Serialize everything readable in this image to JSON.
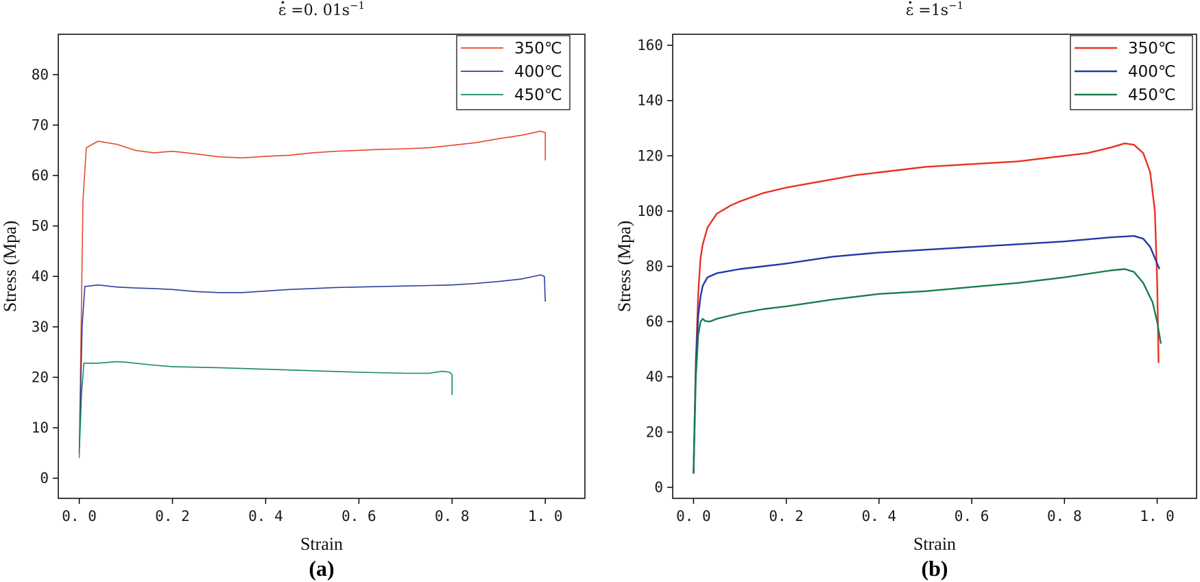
{
  "chart_data": [
    {
      "type": "line",
      "panel_label": "(a)",
      "title": "ε̇ =0. 01s⁻¹",
      "title_rate": "ε =0. 01s",
      "title_exp": "−1",
      "xlabel": "Strain",
      "ylabel": "Stress (Mpa)",
      "xlim": [
        -0.045,
        1.085
      ],
      "ylim": [
        -4,
        88
      ],
      "xticks": [
        0.0,
        0.2,
        0.4,
        0.6,
        0.8,
        1.0
      ],
      "xtick_labels": [
        "0. 0",
        "0. 2",
        "0. 4",
        "0. 6",
        "0. 8",
        "1. 0"
      ],
      "yticks": [
        0,
        10,
        20,
        30,
        40,
        50,
        60,
        70,
        80
      ],
      "ytick_labels": [
        "0",
        "10",
        "20",
        "30",
        "40",
        "50",
        "60",
        "70",
        "80"
      ],
      "legend_position": "top-right",
      "series": [
        {
          "name": "350℃",
          "color": "#e8472a",
          "x": [
            0,
            0.008,
            0.015,
            0.04,
            0.08,
            0.12,
            0.16,
            0.2,
            0.25,
            0.3,
            0.35,
            0.4,
            0.45,
            0.5,
            0.55,
            0.6,
            0.65,
            0.7,
            0.75,
            0.8,
            0.85,
            0.9,
            0.95,
            0.99,
            1.0,
            1.0
          ],
          "y": [
            4,
            55,
            65.5,
            66.8,
            66.2,
            65,
            64.5,
            64.8,
            64.3,
            63.7,
            63.5,
            63.8,
            64,
            64.5,
            64.8,
            65,
            65.2,
            65.3,
            65.5,
            66,
            66.5,
            67.3,
            68,
            68.8,
            68.5,
            63
          ]
        },
        {
          "name": "400℃",
          "color": "#2c3d9c",
          "x": [
            0,
            0.006,
            0.012,
            0.04,
            0.08,
            0.12,
            0.16,
            0.2,
            0.25,
            0.3,
            0.35,
            0.4,
            0.45,
            0.5,
            0.55,
            0.6,
            0.65,
            0.7,
            0.75,
            0.8,
            0.85,
            0.9,
            0.95,
            0.99,
            0.998,
            1.0
          ],
          "y": [
            5,
            30,
            38,
            38.3,
            37.9,
            37.7,
            37.6,
            37.4,
            37,
            36.8,
            36.8,
            37.1,
            37.4,
            37.6,
            37.8,
            37.9,
            38,
            38.1,
            38.2,
            38.3,
            38.6,
            39,
            39.5,
            40.3,
            40,
            35
          ]
        },
        {
          "name": "450℃",
          "color": "#158a55",
          "x": [
            0,
            0.005,
            0.01,
            0.04,
            0.08,
            0.1,
            0.15,
            0.2,
            0.3,
            0.4,
            0.5,
            0.6,
            0.7,
            0.75,
            0.78,
            0.795,
            0.8,
            0.8
          ],
          "y": [
            5,
            17,
            22.8,
            22.8,
            23.1,
            23,
            22.5,
            22.1,
            21.9,
            21.6,
            21.3,
            21,
            20.8,
            20.8,
            21.2,
            21,
            20.5,
            16.5
          ]
        }
      ]
    },
    {
      "type": "line",
      "panel_label": "(b)",
      "title": "ε̇ =1s⁻¹",
      "title_rate": "ε =1s",
      "title_exp": "−1",
      "xlabel": "Strain",
      "ylabel": "Stress (Mpa)",
      "xlim": [
        -0.045,
        1.085
      ],
      "ylim": [
        -4,
        164
      ],
      "xticks": [
        0.0,
        0.2,
        0.4,
        0.6,
        0.8,
        1.0
      ],
      "xtick_labels": [
        "0. 0",
        "0. 2",
        "0. 4",
        "0. 6",
        "0. 8",
        "1. 0"
      ],
      "yticks": [
        0,
        20,
        40,
        60,
        80,
        100,
        120,
        140,
        160
      ],
      "ytick_labels": [
        "0",
        "20",
        "40",
        "60",
        "80",
        "100",
        "120",
        "140",
        "160"
      ],
      "legend_position": "top-right",
      "series": [
        {
          "name": "350℃",
          "color": "#e8321f",
          "x": [
            0,
            0.005,
            0.01,
            0.015,
            0.02,
            0.03,
            0.05,
            0.08,
            0.1,
            0.15,
            0.2,
            0.25,
            0.3,
            0.35,
            0.4,
            0.45,
            0.5,
            0.55,
            0.6,
            0.65,
            0.7,
            0.75,
            0.8,
            0.85,
            0.9,
            0.93,
            0.95,
            0.97,
            0.985,
            0.995,
            1.0,
            1.003
          ],
          "y": [
            5,
            45,
            70,
            83,
            88,
            94,
            99,
            102,
            103.5,
            106.5,
            108.5,
            110,
            111.5,
            113,
            114,
            115,
            116,
            116.5,
            117,
            117.5,
            118,
            119,
            120,
            121,
            123,
            124.5,
            124,
            121,
            114,
            100,
            75,
            45
          ]
        },
        {
          "name": "400℃",
          "color": "#2238a8",
          "x": [
            0,
            0.005,
            0.01,
            0.015,
            0.02,
            0.03,
            0.05,
            0.1,
            0.15,
            0.2,
            0.3,
            0.4,
            0.5,
            0.6,
            0.7,
            0.8,
            0.9,
            0.95,
            0.97,
            0.985,
            0.995,
            1.005
          ],
          "y": [
            5,
            45,
            62,
            69,
            73,
            76,
            77.5,
            79,
            80,
            81,
            83.5,
            85,
            86,
            87,
            88,
            89,
            90.5,
            91,
            90,
            87,
            83,
            79
          ]
        },
        {
          "name": "450℃",
          "color": "#187e4a",
          "x": [
            0,
            0.005,
            0.01,
            0.015,
            0.02,
            0.025,
            0.035,
            0.05,
            0.1,
            0.15,
            0.2,
            0.3,
            0.4,
            0.5,
            0.6,
            0.7,
            0.8,
            0.9,
            0.93,
            0.95,
            0.97,
            0.99,
            1.0,
            1.008
          ],
          "y": [
            5,
            40,
            55,
            60,
            61,
            60.2,
            60,
            61,
            63,
            64.5,
            65.5,
            68,
            70,
            71,
            72.5,
            74,
            76,
            78.5,
            79,
            78,
            74,
            67,
            60,
            52
          ]
        }
      ]
    }
  ]
}
